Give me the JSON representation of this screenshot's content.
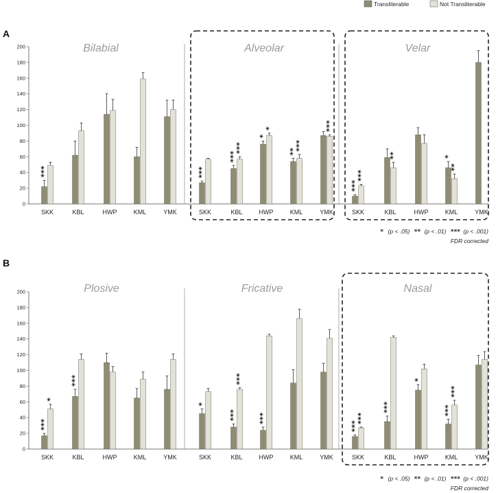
{
  "legend": {
    "transliterable": "Transliterable",
    "not_transliterable": "Not Transliterable"
  },
  "colors": {
    "transliterable": "#8f8c74",
    "not_transliterable": "#e2e2d8",
    "title": "#9a9a9a",
    "axis": "#777777"
  },
  "chart_data": [
    {
      "type": "bar",
      "panel_label": "A",
      "ylim": [
        0,
        200
      ],
      "yticks": [
        "0",
        "20",
        "40",
        "60",
        "80",
        "100",
        "120",
        "140",
        "160",
        "180",
        "200"
      ],
      "highlighted_panels": [
        "Alveolar",
        "Velar"
      ],
      "note": {
        "sig1_star": "*",
        "sig1": "(p < .05)",
        "sig2_star": "**",
        "sig2": "(p < .01)",
        "sig3_star": "***",
        "sig3": "(p < .001)",
        "correction": "FDR corrected"
      },
      "panels": [
        {
          "title": "Bilabial",
          "categories": [
            "SKK",
            "KBL",
            "HWP",
            "KML",
            "YMK"
          ],
          "series": [
            {
              "name": "Transliterable",
              "values": [
                22,
                62,
                114,
                60,
                111
              ],
              "errors": [
                8,
                18,
                26,
                12,
                21
              ]
            },
            {
              "name": "Not Transliterable",
              "values": [
                49,
                93,
                119,
                159,
                120
              ],
              "errors": [
                4,
                10,
                14,
                8,
                12
              ]
            }
          ],
          "stars": [
            [
              "***",
              ""
            ],
            [
              "",
              ""
            ],
            [
              "",
              ""
            ],
            [
              "",
              ""
            ],
            [
              "",
              ""
            ]
          ]
        },
        {
          "title": "Alveolar",
          "categories": [
            "SKK",
            "KBL",
            "HWP",
            "KML",
            "YMK"
          ],
          "series": [
            {
              "name": "Transliterable",
              "values": [
                27,
                45,
                76,
                54,
                87
              ],
              "errors": [
                2,
                4,
                4,
                4,
                5
              ]
            },
            {
              "name": "Not Transliterable",
              "values": [
                57,
                57,
                87,
                58,
                86
              ],
              "errors": [
                1,
                3,
                3,
                5,
                2
              ]
            }
          ],
          "stars": [
            [
              "***",
              ""
            ],
            [
              "***",
              "***"
            ],
            [
              "*",
              "*"
            ],
            [
              "**",
              "***"
            ],
            [
              "",
              "***"
            ]
          ]
        },
        {
          "title": "Velar",
          "categories": [
            "SKK",
            "KBL",
            "HWP",
            "KML",
            "YMK"
          ],
          "series": [
            {
              "name": "Transliterable",
              "values": [
                10,
                59,
                88,
                46,
                180
              ],
              "errors": [
                2,
                11,
                9,
                8,
                15
              ]
            },
            {
              "name": "Not Transliterable",
              "values": [
                23,
                46,
                77,
                32,
                null
              ],
              "errors": [
                2,
                7,
                11,
                6,
                null
              ]
            }
          ],
          "stars": [
            [
              "***",
              "***"
            ],
            [
              "",
              "**"
            ],
            [
              "",
              ""
            ],
            [
              "*",
              "**"
            ],
            [
              "",
              ""
            ]
          ]
        }
      ]
    },
    {
      "type": "bar",
      "panel_label": "B",
      "ylim": [
        0,
        200
      ],
      "yticks": [
        "0",
        "20",
        "40",
        "60",
        "80",
        "100",
        "120",
        "140",
        "160",
        "180",
        "200"
      ],
      "highlighted_panels": [
        "Nasal"
      ],
      "note": {
        "sig1_star": "*",
        "sig1": "(p < .05)",
        "sig2_star": "**",
        "sig2": "(p < .01)",
        "sig3_star": "***",
        "sig3": "(p < .001)",
        "correction": "FDR corrected"
      },
      "panels": [
        {
          "title": "Plosive",
          "categories": [
            "SKK",
            "KBL",
            "HWP",
            "KML",
            "YMK"
          ],
          "series": [
            {
              "name": "Transliterable",
              "values": [
                17,
                67,
                110,
                65,
                76
              ],
              "errors": [
                3,
                9,
                12,
                12,
                17
              ]
            },
            {
              "name": "Not Transliterable",
              "values": [
                51,
                114,
                98,
                89,
                114
              ],
              "errors": [
                6,
                7,
                7,
                9,
                7
              ]
            }
          ],
          "stars": [
            [
              "***",
              "*"
            ],
            [
              "***",
              ""
            ],
            [
              "",
              ""
            ],
            [
              "",
              ""
            ],
            [
              "",
              ""
            ]
          ]
        },
        {
          "title": "Fricative",
          "categories": [
            "SKK",
            "KBL",
            "HWP",
            "KML",
            "YMK"
          ],
          "series": [
            {
              "name": "Transliterable",
              "values": [
                45,
                28,
                24,
                84,
                98
              ],
              "errors": [
                6,
                4,
                4,
                17,
                11
              ]
            },
            {
              "name": "Not Transliterable",
              "values": [
                73,
                76,
                144,
                166,
                141
              ],
              "errors": [
                4,
                2,
                2,
                12,
                11
              ]
            }
          ],
          "stars": [
            [
              "*",
              ""
            ],
            [
              "***",
              "***"
            ],
            [
              "***",
              ""
            ],
            [
              "",
              ""
            ],
            [
              "",
              ""
            ]
          ]
        },
        {
          "title": "Nasal",
          "categories": [
            "SKK",
            "KBL",
            "HWP",
            "KML",
            "YMK"
          ],
          "series": [
            {
              "name": "Transliterable",
              "values": [
                16,
                35,
                75,
                32,
                107
              ],
              "errors": [
                2,
                7,
                7,
                6,
                12
              ]
            },
            {
              "name": "Not Transliterable",
              "values": [
                27,
                142,
                102,
                56,
                114
              ],
              "errors": [
                1,
                2,
                6,
                6,
                10
              ]
            }
          ],
          "stars": [
            [
              "***",
              "***"
            ],
            [
              "***",
              ""
            ],
            [
              "*",
              ""
            ],
            [
              "***",
              "***"
            ],
            [
              "",
              ""
            ]
          ]
        }
      ]
    }
  ]
}
